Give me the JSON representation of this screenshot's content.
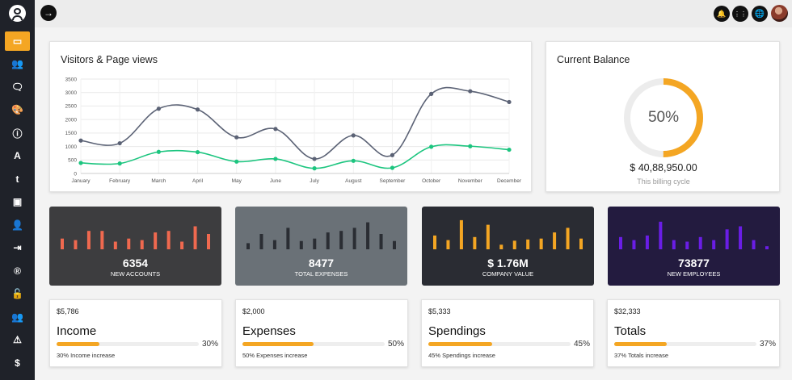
{
  "colors": {
    "accent": "#f4a623",
    "sidebar": "#1f2229",
    "visitors_line": "#5b6275",
    "pageviews_line": "#1cc57f"
  },
  "sidebar": {
    "items": [
      {
        "icon": "laptop-icon",
        "glyph": "▭",
        "active": true
      },
      {
        "icon": "users-icon",
        "glyph": "👥"
      },
      {
        "icon": "comment-icon",
        "glyph": "🗨"
      },
      {
        "icon": "palette-icon",
        "glyph": "🎨"
      },
      {
        "icon": "info-icon",
        "glyph": "ⓘ"
      },
      {
        "icon": "font-icon",
        "glyph": "A"
      },
      {
        "icon": "tumblr-icon",
        "glyph": "t"
      },
      {
        "icon": "image-icon",
        "glyph": "▣"
      },
      {
        "icon": "user-icon",
        "glyph": "👤"
      },
      {
        "icon": "sign-in-icon",
        "glyph": "⇥"
      },
      {
        "icon": "registered-icon",
        "glyph": "®"
      },
      {
        "icon": "unlock-icon",
        "glyph": "🔓"
      },
      {
        "icon": "user-cog-icon",
        "glyph": "👥"
      },
      {
        "icon": "warning-icon",
        "glyph": "⚠"
      },
      {
        "icon": "dollar-icon",
        "glyph": "$"
      }
    ]
  },
  "topbar": {
    "toggle_icon": "→",
    "bell_icon": "🔔",
    "grid_icon": "⋮⋮",
    "globe_icon": "🌐"
  },
  "visitors_card": {
    "title": "Visitors & Page views"
  },
  "balance_card": {
    "title": "Current Balance",
    "percent_label": "50%",
    "percent": 50,
    "amount": "$ 40,88,950.00",
    "subtitle": "This billing cycle"
  },
  "chart_data": {
    "type": "line",
    "categories": [
      "January",
      "February",
      "March",
      "April",
      "May",
      "June",
      "July",
      "August",
      "September",
      "October",
      "November",
      "December"
    ],
    "y_ticks": [
      "0",
      "500",
      "1000",
      "1500",
      "2000",
      "2500",
      "3000",
      "3500"
    ],
    "ylim": [
      0,
      3500
    ],
    "grid": true,
    "series": [
      {
        "values": [
          1220,
          1120,
          2400,
          2370,
          1340,
          1650,
          540,
          1410,
          680,
          2950,
          3050,
          2650
        ]
      },
      {
        "values": [
          390,
          370,
          800,
          790,
          440,
          540,
          190,
          470,
          210,
          990,
          1010,
          880
        ]
      }
    ]
  },
  "stats": [
    {
      "value": "6354",
      "label": "NEW ACCOUNTS",
      "bg": "#3d3d3f",
      "bar": "#f0694f",
      "bars": [
        0.35,
        0.3,
        0.6,
        0.6,
        0.25,
        0.35,
        0.3,
        0.55,
        0.6,
        0.25,
        0.75,
        0.5
      ]
    },
    {
      "value": "8477",
      "label": "TOTAL EXPENSES",
      "bg": "#6a7177",
      "bar": "#2a2d33",
      "bars": [
        0.2,
        0.5,
        0.3,
        0.7,
        0.27,
        0.35,
        0.55,
        0.6,
        0.7,
        0.88,
        0.5,
        0.27
      ]
    },
    {
      "value": "$ 1.76M",
      "label": "COMPANY VALUE",
      "bg": "#2a2c33",
      "bar": "#f4a623",
      "bars": [
        0.45,
        0.3,
        0.95,
        0.4,
        0.8,
        0.15,
        0.28,
        0.32,
        0.35,
        0.55,
        0.7,
        0.35
      ]
    },
    {
      "value": "73877",
      "label": "NEW EMPLOYEES",
      "bg": "#231b3f",
      "bar": "#6a1de6",
      "bars": [
        0.4,
        0.3,
        0.45,
        0.9,
        0.3,
        0.25,
        0.4,
        0.3,
        0.65,
        0.75,
        0.3,
        0.1
      ]
    }
  ],
  "summaries": [
    {
      "amount": "$5,786",
      "title": "Income",
      "percent": 30,
      "percent_label": "30%",
      "note": "30% Income increase"
    },
    {
      "amount": "$2,000",
      "title": "Expenses",
      "percent": 50,
      "percent_label": "50%",
      "note": "50% Expenses increase"
    },
    {
      "amount": "$5,333",
      "title": "Spendings",
      "percent": 45,
      "percent_label": "45%",
      "note": "45% Spendings increase"
    },
    {
      "amount": "$32,333",
      "title": "Totals",
      "percent": 37,
      "percent_label": "37%",
      "note": "37% Totals increase"
    }
  ]
}
